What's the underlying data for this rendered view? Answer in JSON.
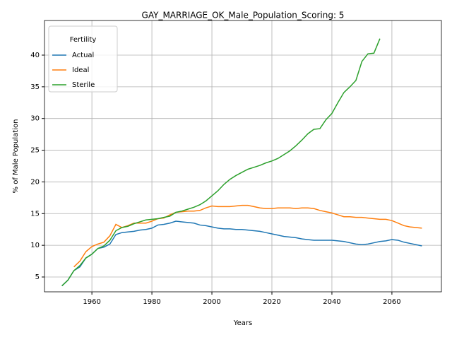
{
  "chart_data": {
    "type": "line",
    "title": "GAY_MARRIAGE_OK_Male_Population_Scoring: 5",
    "x_label": "Years",
    "y_label": "% of Male Population",
    "legend_title": "Fertility",
    "legend_position": "upper left",
    "grid": true,
    "x": [
      1950,
      1952,
      1954,
      1956,
      1958,
      1960,
      1962,
      1964,
      1966,
      1968,
      1970,
      1972,
      1974,
      1976,
      1978,
      1980,
      1982,
      1984,
      1986,
      1988,
      1990,
      1992,
      1994,
      1996,
      1998,
      2000,
      2002,
      2004,
      2006,
      2008,
      2010,
      2012,
      2014,
      2016,
      2018,
      2020,
      2022,
      2024,
      2026,
      2028,
      2030,
      2032,
      2034,
      2036,
      2038,
      2040,
      2042,
      2044,
      2046,
      2048,
      2050,
      2052,
      2054,
      2056,
      2058,
      2060,
      2062,
      2064,
      2066,
      2068,
      2070
    ],
    "series": [
      {
        "name": "Actual",
        "color": "#1f77b4",
        "values": [
          3.6,
          4.5,
          6.0,
          6.6,
          8.0,
          8.6,
          9.5,
          9.7,
          10.2,
          11.7,
          12.0,
          12.1,
          12.2,
          12.4,
          12.5,
          12.7,
          13.2,
          13.3,
          13.5,
          13.8,
          13.7,
          13.6,
          13.5,
          13.2,
          13.1,
          12.9,
          12.7,
          12.6,
          12.6,
          12.5,
          12.5,
          12.4,
          12.3,
          12.2,
          12.0,
          11.8,
          11.6,
          11.4,
          11.3,
          11.2,
          11.0,
          10.9,
          10.8,
          10.8,
          10.8,
          10.8,
          10.7,
          10.6,
          10.4,
          10.2,
          10.1,
          10.2,
          10.4,
          10.6,
          10.7,
          10.9,
          10.8,
          10.5,
          10.3,
          10.1,
          9.9
        ]
      },
      {
        "name": "Ideal",
        "color": "#ff7f0e",
        "values": [
          null,
          null,
          6.6,
          7.5,
          9.0,
          9.8,
          10.2,
          10.5,
          11.5,
          13.3,
          12.8,
          13.1,
          13.5,
          13.5,
          13.5,
          13.8,
          14.2,
          14.3,
          14.8,
          15.2,
          15.3,
          15.4,
          15.4,
          15.5,
          15.9,
          16.2,
          16.1,
          16.1,
          16.1,
          16.2,
          16.3,
          16.3,
          16.1,
          15.9,
          15.8,
          15.8,
          15.9,
          15.9,
          15.9,
          15.8,
          15.9,
          15.9,
          15.8,
          15.5,
          15.3,
          15.1,
          14.8,
          14.5,
          14.5,
          14.4,
          14.4,
          14.3,
          14.2,
          14.1,
          14.1,
          13.9,
          13.5,
          13.1,
          12.9,
          12.8,
          12.7
        ]
      },
      {
        "name": "Sterile",
        "color": "#2ca02c",
        "values": [
          3.6,
          4.5,
          6.0,
          6.8,
          8.0,
          8.6,
          9.5,
          9.9,
          10.8,
          12.3,
          12.8,
          13.0,
          13.4,
          13.7,
          14.0,
          14.1,
          14.2,
          14.4,
          14.6,
          15.2,
          15.4,
          15.7,
          16.0,
          16.4,
          17.0,
          17.8,
          18.6,
          19.6,
          20.4,
          21.0,
          21.5,
          22.0,
          22.3,
          22.6,
          23.0,
          23.3,
          23.7,
          24.3,
          24.9,
          25.7,
          26.6,
          27.6,
          28.3,
          28.4,
          29.8,
          30.8,
          32.5,
          34.1,
          35.0,
          36.0,
          39.0,
          40.2,
          40.3,
          42.6,
          null,
          null,
          null,
          null,
          null,
          null,
          null
        ]
      }
    ],
    "xlim": [
      1944.2,
      2076.5
    ],
    "ylim": [
      2.66,
      45.46
    ],
    "xticks": [
      1960,
      1980,
      2000,
      2020,
      2040,
      2060
    ],
    "yticks": [
      5,
      10,
      15,
      20,
      25,
      30,
      35,
      40
    ]
  }
}
